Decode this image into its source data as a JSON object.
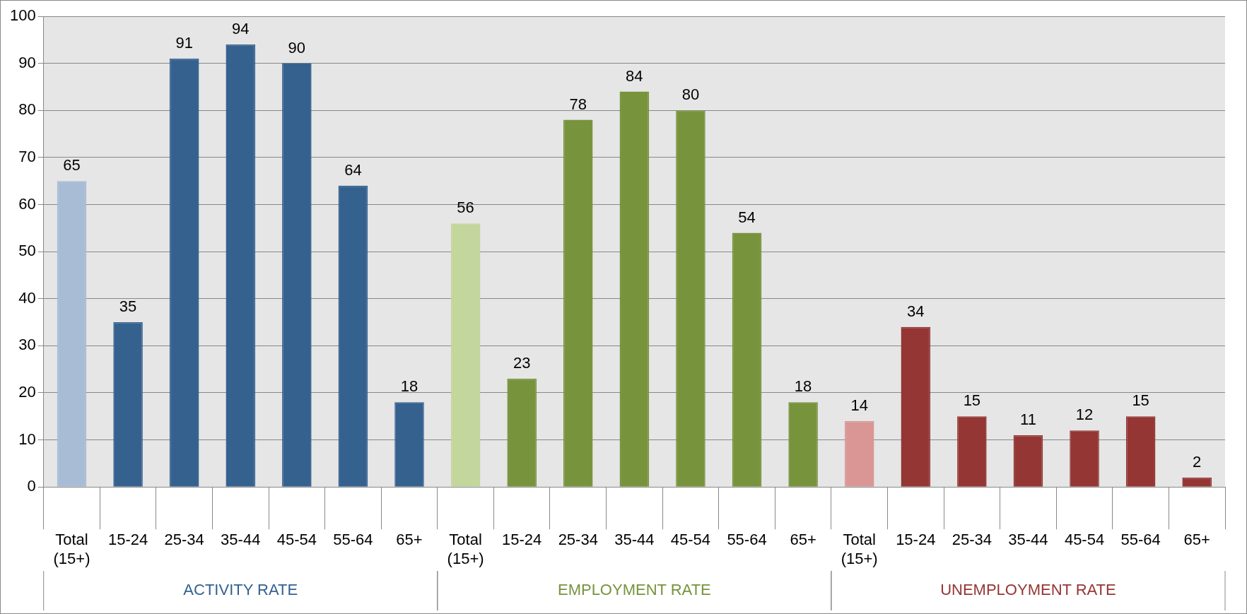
{
  "chart_data": {
    "type": "bar",
    "categories": [
      "Total (15+)",
      "15-24",
      "25-34",
      "35-44",
      "45-54",
      "55-64",
      "65+",
      "Total (15+)",
      "15-24",
      "25-34",
      "35-44",
      "45-54",
      "55-64",
      "65+",
      "Total (15+)",
      "15-24",
      "25-34",
      "35-44",
      "45-54",
      "55-64",
      "65+"
    ],
    "series": [
      {
        "name": "ACTIVITY RATE",
        "color": "#35618f",
        "colors": [
          "#a9bcd6",
          null,
          null,
          null,
          null,
          null,
          null,
          null,
          null,
          null,
          null,
          null,
          null,
          null,
          null,
          null,
          null,
          null,
          null,
          null,
          null
        ],
        "values": [
          65,
          35,
          91,
          94,
          90,
          64,
          18,
          null,
          null,
          null,
          null,
          null,
          null,
          null,
          null,
          null,
          null,
          null,
          null,
          null,
          null
        ]
      },
      {
        "name": "EMPLOYMENT RATE",
        "color": "#77933c",
        "colors": [
          null,
          null,
          null,
          null,
          null,
          null,
          null,
          "#c3d69b",
          null,
          null,
          null,
          null,
          null,
          null,
          null,
          null,
          null,
          null,
          null,
          null,
          null
        ],
        "values": [
          null,
          null,
          null,
          null,
          null,
          null,
          null,
          56,
          23,
          78,
          84,
          80,
          54,
          18,
          null,
          null,
          null,
          null,
          null,
          null,
          null
        ]
      },
      {
        "name": "UNEMPLOYMENT RATE",
        "color": "#943634",
        "colors": [
          null,
          null,
          null,
          null,
          null,
          null,
          null,
          null,
          null,
          null,
          null,
          null,
          null,
          null,
          "#d99694",
          null,
          null,
          null,
          null,
          null,
          null
        ],
        "values": [
          null,
          null,
          null,
          null,
          null,
          null,
          null,
          null,
          null,
          null,
          null,
          null,
          null,
          null,
          14,
          34,
          15,
          11,
          12,
          15,
          2
        ]
      }
    ],
    "ylim": [
      0,
      100
    ],
    "yticks": [
      0,
      10,
      20,
      30,
      40,
      50,
      60,
      70,
      80,
      90,
      100
    ],
    "grid": "y",
    "legend": false,
    "data_labels": true
  }
}
